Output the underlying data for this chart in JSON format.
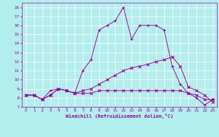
{
  "xlabel": "Windchill (Refroidissement éolien,°C)",
  "background_color": "#b2eeee",
  "grid_color": "#ffffff",
  "line_color": "#990099",
  "xlim": [
    -0.5,
    23.5
  ],
  "ylim": [
    7,
    18.5
  ],
  "xticks": [
    0,
    1,
    2,
    3,
    4,
    5,
    6,
    7,
    8,
    9,
    10,
    11,
    12,
    13,
    14,
    15,
    16,
    17,
    18,
    19,
    20,
    21,
    22,
    23
  ],
  "yticks": [
    7,
    8,
    9,
    10,
    11,
    12,
    13,
    14,
    15,
    16,
    17,
    18
  ],
  "series": [
    {
      "y": [
        8.3,
        8.3,
        7.8,
        8.3,
        9.0,
        8.8,
        8.5,
        8.5,
        8.5,
        8.8,
        8.8,
        8.8,
        8.8,
        8.8,
        8.8,
        8.8,
        8.8,
        8.8,
        8.8,
        8.8,
        8.5,
        8.3,
        7.8,
        7.8
      ],
      "marker": "x",
      "lw": 0.7,
      "ms": 2.5
    },
    {
      "y": [
        8.3,
        8.3,
        7.8,
        8.3,
        9.0,
        8.8,
        8.5,
        8.8,
        9.0,
        9.5,
        10.0,
        10.5,
        11.0,
        11.3,
        11.5,
        11.7,
        12.0,
        12.2,
        12.5,
        11.5,
        9.2,
        8.8,
        8.3,
        7.5
      ],
      "marker": "x",
      "lw": 0.7,
      "ms": 2.5
    },
    {
      "y": [
        8.3,
        8.3,
        7.8,
        8.8,
        9.0,
        8.8,
        8.5,
        11.0,
        12.2,
        15.5,
        16.0,
        16.5,
        18.0,
        14.5,
        16.0,
        16.0,
        16.0,
        15.5,
        11.5,
        9.5,
        8.5,
        8.0,
        7.2,
        7.8
      ],
      "marker": "+",
      "lw": 0.7,
      "ms": 3.5
    }
  ]
}
